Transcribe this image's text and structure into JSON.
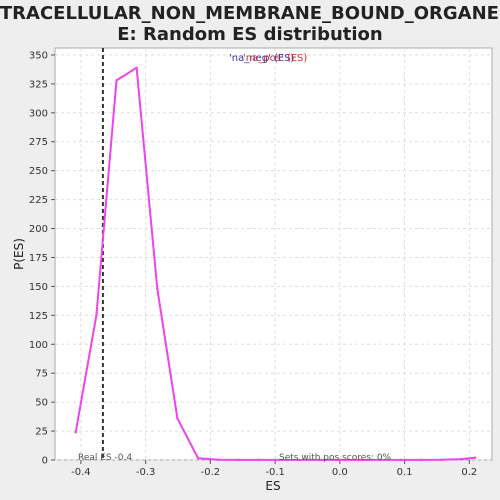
{
  "chart_data": {
    "type": "line",
    "title_line1": "INTRACELLULAR_NON_MEMBRANE_BOUND_ORGANELL",
    "title_line2": "E: Random ES distribution",
    "xlabel": "ES",
    "ylabel": "P(ES)",
    "xlim": [
      -0.44,
      0.235
    ],
    "ylim": [
      0,
      356
    ],
    "xticks": [
      -0.4,
      -0.3,
      -0.2,
      -0.1,
      0.0,
      0.1,
      0.2
    ],
    "xtick_labels": [
      "-0.4",
      "-0.3",
      "-0.2",
      "-0.1",
      "0.0",
      "0.1",
      "0.2"
    ],
    "yticks": [
      0,
      25,
      50,
      75,
      100,
      125,
      150,
      175,
      200,
      225,
      250,
      275,
      300,
      325,
      350
    ],
    "ytick_labels": [
      "0",
      "25",
      "50",
      "75",
      "100",
      "125",
      "150",
      "175",
      "200",
      "225",
      "250",
      "275",
      "300",
      "325",
      "350"
    ],
    "grid": true,
    "legend_position": "top-center",
    "legend_entries": [
      {
        "text": "'na_neg' (ES)",
        "color": "#3333aa"
      },
      {
        "text": "'na_pos' (ES)",
        "color": "#cc3333"
      }
    ],
    "series": [
      {
        "color": "#ee44ee",
        "x": [
          -0.408,
          -0.376,
          -0.345,
          -0.314,
          -0.282,
          -0.251,
          -0.219,
          -0.188,
          -0.157,
          -0.125,
          -0.094,
          -0.062,
          -0.031,
          0.0,
          0.031,
          0.063,
          0.094,
          0.126,
          0.157,
          0.188,
          0.209
        ],
        "y": [
          24,
          125,
          328,
          339,
          148,
          36,
          1.5,
          0.3,
          0.1,
          0.1,
          0.05,
          0.05,
          0.05,
          0.05,
          0.05,
          0.05,
          0.05,
          0.05,
          0.2,
          0.8,
          2
        ]
      }
    ],
    "real_es": {
      "x": -0.366,
      "label": "Real ES -0.4"
    },
    "sets_annotation": "Sets with pos scores: 0%"
  },
  "colors": {
    "background": "#eeeeee",
    "plot_background": "#ffffff",
    "grid": "#dddddd",
    "line": "#ee44ee",
    "marker": "#333333"
  }
}
